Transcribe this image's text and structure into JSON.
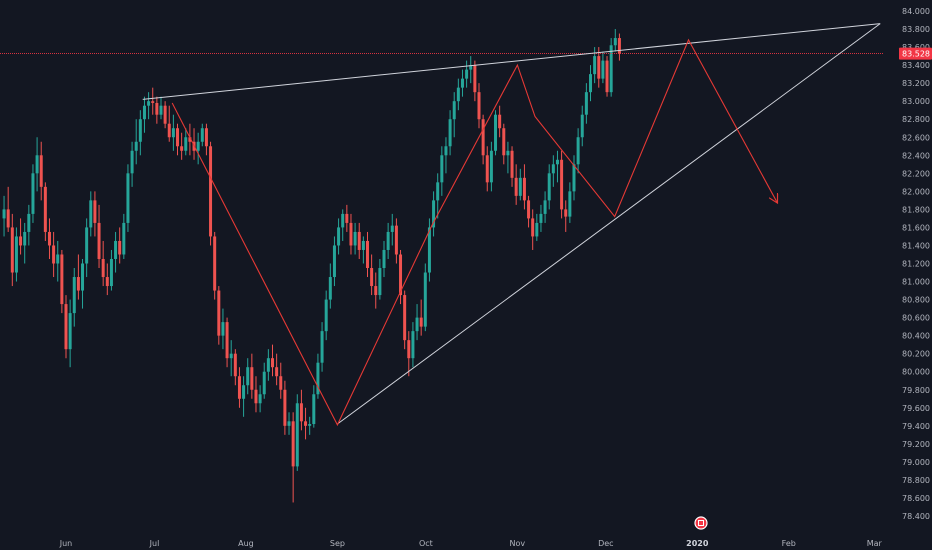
{
  "chart_data": {
    "type": "candlestick",
    "ylim": [
      78.25,
      84.15
    ],
    "y_ticks": [
      "84.000",
      "83.800",
      "83.600",
      "83.400",
      "83.200",
      "83.000",
      "82.800",
      "82.600",
      "82.400",
      "82.200",
      "82.000",
      "81.800",
      "81.600",
      "81.400",
      "81.200",
      "81.000",
      "80.800",
      "80.600",
      "80.400",
      "80.200",
      "80.000",
      "79.800",
      "79.600",
      "79.400",
      "79.200",
      "79.000",
      "78.800",
      "78.600",
      "78.400"
    ],
    "x_ticks": [
      {
        "label": "Jun",
        "day": 0,
        "bold": false
      },
      {
        "label": "Jul",
        "day": 30,
        "bold": false
      },
      {
        "label": "Aug",
        "day": 61,
        "bold": false
      },
      {
        "label": "Sep",
        "day": 92,
        "bold": false
      },
      {
        "label": "Oct",
        "day": 122,
        "bold": false
      },
      {
        "label": "Nov",
        "day": 153,
        "bold": false
      },
      {
        "label": "Dec",
        "day": 183,
        "bold": false
      },
      {
        "label": "2020",
        "day": 214,
        "bold": true
      },
      {
        "label": "Feb",
        "day": 245,
        "bold": false
      },
      {
        "label": "Mar",
        "day": 274,
        "bold": false
      }
    ],
    "current_price": {
      "value": 83.528,
      "label": "83.528",
      "color": "#f23645"
    },
    "colors": {
      "up": "#26a69a",
      "down": "#ef5350",
      "background": "#131722",
      "trendline": "#d1d4dc",
      "pattern": "#e53935"
    },
    "pivot_path": [
      {
        "day": 36,
        "price": 82.98
      },
      {
        "day": 92,
        "price": 79.41
      },
      {
        "day": 124,
        "price": 81.62
      },
      {
        "day": 153,
        "price": 83.4
      },
      {
        "day": 159,
        "price": 82.83
      },
      {
        "day": 186,
        "price": 81.72
      },
      {
        "day": 211,
        "price": 83.68
      },
      {
        "day": 241,
        "price": 81.88
      }
    ],
    "trendlines": [
      {
        "from": {
          "day": 26,
          "price": 83.02
        },
        "to": {
          "day": 276,
          "price": 83.86
        }
      },
      {
        "from": {
          "day": 92,
          "price": 79.42
        },
        "to": {
          "day": 276,
          "price": 83.86
        }
      }
    ],
    "candles": [
      {
        "o": 81.7,
        "h": 81.95,
        "l": 81.5,
        "c": 81.8
      },
      {
        "o": 81.8,
        "h": 82.05,
        "l": 81.55,
        "c": 81.6
      },
      {
        "o": 81.6,
        "h": 81.75,
        "l": 80.95,
        "c": 81.1
      },
      {
        "o": 81.1,
        "h": 81.6,
        "l": 81.0,
        "c": 81.5
      },
      {
        "o": 81.5,
        "h": 81.7,
        "l": 81.3,
        "c": 81.4
      },
      {
        "o": 81.4,
        "h": 81.65,
        "l": 81.2,
        "c": 81.55
      },
      {
        "o": 81.55,
        "h": 81.85,
        "l": 81.4,
        "c": 81.75
      },
      {
        "o": 81.75,
        "h": 82.3,
        "l": 81.65,
        "c": 82.2
      },
      {
        "o": 82.2,
        "h": 82.6,
        "l": 82.0,
        "c": 82.4
      },
      {
        "o": 82.4,
        "h": 82.55,
        "l": 81.9,
        "c": 82.05
      },
      {
        "o": 82.05,
        "h": 82.1,
        "l": 81.45,
        "c": 81.55
      },
      {
        "o": 81.55,
        "h": 81.7,
        "l": 81.25,
        "c": 81.4
      },
      {
        "o": 81.4,
        "h": 81.55,
        "l": 81.05,
        "c": 81.2
      },
      {
        "o": 81.2,
        "h": 81.45,
        "l": 81.0,
        "c": 81.3
      },
      {
        "o": 81.3,
        "h": 81.35,
        "l": 80.65,
        "c": 80.75
      },
      {
        "o": 80.75,
        "h": 80.85,
        "l": 80.15,
        "c": 80.25
      },
      {
        "o": 80.25,
        "h": 80.8,
        "l": 80.05,
        "c": 80.65
      },
      {
        "o": 80.65,
        "h": 81.15,
        "l": 80.5,
        "c": 81.05
      },
      {
        "o": 81.05,
        "h": 81.3,
        "l": 80.8,
        "c": 80.9
      },
      {
        "o": 80.9,
        "h": 81.25,
        "l": 80.7,
        "c": 81.2
      },
      {
        "o": 81.2,
        "h": 81.7,
        "l": 81.05,
        "c": 81.6
      },
      {
        "o": 81.6,
        "h": 82.0,
        "l": 81.5,
        "c": 81.9
      },
      {
        "o": 81.9,
        "h": 82.0,
        "l": 81.5,
        "c": 81.65
      },
      {
        "o": 81.65,
        "h": 81.85,
        "l": 81.15,
        "c": 81.25
      },
      {
        "o": 81.25,
        "h": 81.45,
        "l": 80.95,
        "c": 81.05
      },
      {
        "o": 81.05,
        "h": 81.2,
        "l": 80.85,
        "c": 80.95
      },
      {
        "o": 80.95,
        "h": 81.35,
        "l": 80.9,
        "c": 81.25
      },
      {
        "o": 81.25,
        "h": 81.55,
        "l": 81.1,
        "c": 81.45
      },
      {
        "o": 81.45,
        "h": 81.6,
        "l": 81.2,
        "c": 81.3
      },
      {
        "o": 81.3,
        "h": 81.75,
        "l": 81.25,
        "c": 81.65
      },
      {
        "o": 81.65,
        "h": 82.3,
        "l": 81.55,
        "c": 82.2
      },
      {
        "o": 82.2,
        "h": 82.55,
        "l": 82.05,
        "c": 82.45
      },
      {
        "o": 82.45,
        "h": 82.8,
        "l": 82.3,
        "c": 82.55
      },
      {
        "o": 82.55,
        "h": 82.9,
        "l": 82.4,
        "c": 82.8
      },
      {
        "o": 82.8,
        "h": 83.05,
        "l": 82.65,
        "c": 82.95
      },
      {
        "o": 82.95,
        "h": 83.1,
        "l": 82.8,
        "c": 83.0
      },
      {
        "o": 83.0,
        "h": 83.15,
        "l": 82.85,
        "c": 82.98
      },
      {
        "o": 82.98,
        "h": 83.05,
        "l": 82.75,
        "c": 82.85
      },
      {
        "o": 82.85,
        "h": 83.05,
        "l": 82.8,
        "c": 82.95
      },
      {
        "o": 82.95,
        "h": 83.0,
        "l": 82.7,
        "c": 82.75
      },
      {
        "o": 82.75,
        "h": 82.95,
        "l": 82.55,
        "c": 82.6
      },
      {
        "o": 82.6,
        "h": 82.85,
        "l": 82.45,
        "c": 82.7
      },
      {
        "o": 82.7,
        "h": 82.75,
        "l": 82.4,
        "c": 82.5
      },
      {
        "o": 82.5,
        "h": 82.65,
        "l": 82.35,
        "c": 82.45
      },
      {
        "o": 82.45,
        "h": 82.7,
        "l": 82.4,
        "c": 82.6
      },
      {
        "o": 82.6,
        "h": 82.75,
        "l": 82.4,
        "c": 82.55
      },
      {
        "o": 82.55,
        "h": 82.7,
        "l": 82.35,
        "c": 82.45
      },
      {
        "o": 82.45,
        "h": 82.65,
        "l": 82.3,
        "c": 82.55
      },
      {
        "o": 82.55,
        "h": 82.75,
        "l": 82.5,
        "c": 82.7
      },
      {
        "o": 82.7,
        "h": 82.75,
        "l": 82.4,
        "c": 82.5
      },
      {
        "o": 82.5,
        "h": 82.55,
        "l": 81.4,
        "c": 81.5
      },
      {
        "o": 81.5,
        "h": 81.55,
        "l": 80.8,
        "c": 80.9
      },
      {
        "o": 80.9,
        "h": 80.95,
        "l": 80.3,
        "c": 80.4
      },
      {
        "o": 80.4,
        "h": 80.7,
        "l": 80.25,
        "c": 80.55
      },
      {
        "o": 80.55,
        "h": 80.6,
        "l": 80.05,
        "c": 80.15
      },
      {
        "o": 80.15,
        "h": 80.35,
        "l": 79.95,
        "c": 80.2
      },
      {
        "o": 80.2,
        "h": 80.25,
        "l": 79.85,
        "c": 79.95
      },
      {
        "o": 79.95,
        "h": 80.05,
        "l": 79.6,
        "c": 79.7
      },
      {
        "o": 79.7,
        "h": 79.95,
        "l": 79.5,
        "c": 79.85
      },
      {
        "o": 79.85,
        "h": 80.15,
        "l": 79.75,
        "c": 80.05
      },
      {
        "o": 80.05,
        "h": 80.2,
        "l": 79.7,
        "c": 79.8
      },
      {
        "o": 79.8,
        "h": 79.95,
        "l": 79.55,
        "c": 79.65
      },
      {
        "o": 79.65,
        "h": 79.85,
        "l": 79.55,
        "c": 79.75
      },
      {
        "o": 79.75,
        "h": 80.1,
        "l": 79.7,
        "c": 80.0
      },
      {
        "o": 80.0,
        "h": 80.25,
        "l": 79.9,
        "c": 80.15
      },
      {
        "o": 80.15,
        "h": 80.3,
        "l": 79.95,
        "c": 80.05
      },
      {
        "o": 80.05,
        "h": 80.2,
        "l": 79.85,
        "c": 79.95
      },
      {
        "o": 79.95,
        "h": 80.1,
        "l": 79.7,
        "c": 79.8
      },
      {
        "o": 79.8,
        "h": 79.9,
        "l": 79.3,
        "c": 79.4
      },
      {
        "o": 79.4,
        "h": 79.55,
        "l": 79.3,
        "c": 79.45
      },
      {
        "o": 79.45,
        "h": 79.55,
        "l": 78.55,
        "c": 78.95
      },
      {
        "o": 78.95,
        "h": 79.75,
        "l": 78.9,
        "c": 79.65
      },
      {
        "o": 79.65,
        "h": 79.8,
        "l": 79.35,
        "c": 79.45
      },
      {
        "o": 79.45,
        "h": 79.6,
        "l": 79.25,
        "c": 79.4
      },
      {
        "o": 79.4,
        "h": 79.5,
        "l": 79.3,
        "c": 79.42
      },
      {
        "o": 79.42,
        "h": 79.85,
        "l": 79.38,
        "c": 79.75
      },
      {
        "o": 79.75,
        "h": 80.2,
        "l": 79.7,
        "c": 80.1
      },
      {
        "o": 80.1,
        "h": 80.55,
        "l": 80.0,
        "c": 80.45
      },
      {
        "o": 80.45,
        "h": 80.9,
        "l": 80.35,
        "c": 80.8
      },
      {
        "o": 80.8,
        "h": 81.2,
        "l": 80.7,
        "c": 81.05
      },
      {
        "o": 81.05,
        "h": 81.5,
        "l": 80.95,
        "c": 81.4
      },
      {
        "o": 81.4,
        "h": 81.7,
        "l": 81.3,
        "c": 81.6
      },
      {
        "o": 81.6,
        "h": 81.8,
        "l": 81.45,
        "c": 81.75
      },
      {
        "o": 81.75,
        "h": 81.85,
        "l": 81.55,
        "c": 81.65
      },
      {
        "o": 81.65,
        "h": 81.75,
        "l": 81.3,
        "c": 81.4
      },
      {
        "o": 81.4,
        "h": 81.65,
        "l": 81.3,
        "c": 81.55
      },
      {
        "o": 81.55,
        "h": 81.65,
        "l": 81.25,
        "c": 81.35
      },
      {
        "o": 81.35,
        "h": 81.5,
        "l": 81.2,
        "c": 81.45
      },
      {
        "o": 81.45,
        "h": 81.55,
        "l": 81.05,
        "c": 81.15
      },
      {
        "o": 81.15,
        "h": 81.3,
        "l": 80.85,
        "c": 80.95
      },
      {
        "o": 80.95,
        "h": 81.1,
        "l": 80.7,
        "c": 80.85
      },
      {
        "o": 80.85,
        "h": 81.25,
        "l": 80.8,
        "c": 81.15
      },
      {
        "o": 81.15,
        "h": 81.45,
        "l": 81.05,
        "c": 81.35
      },
      {
        "o": 81.35,
        "h": 81.65,
        "l": 81.25,
        "c": 81.55
      },
      {
        "o": 81.55,
        "h": 81.75,
        "l": 81.4,
        "c": 81.62
      },
      {
        "o": 81.62,
        "h": 81.7,
        "l": 81.2,
        "c": 81.3
      },
      {
        "o": 81.3,
        "h": 81.35,
        "l": 80.75,
        "c": 80.85
      },
      {
        "o": 80.85,
        "h": 80.9,
        "l": 80.25,
        "c": 80.35
      },
      {
        "o": 80.35,
        "h": 80.45,
        "l": 79.95,
        "c": 80.15
      },
      {
        "o": 80.15,
        "h": 80.55,
        "l": 80.05,
        "c": 80.45
      },
      {
        "o": 80.45,
        "h": 80.75,
        "l": 80.35,
        "c": 80.6
      },
      {
        "o": 80.6,
        "h": 80.8,
        "l": 80.4,
        "c": 80.5
      },
      {
        "o": 80.5,
        "h": 81.2,
        "l": 80.45,
        "c": 81.1
      },
      {
        "o": 81.1,
        "h": 81.7,
        "l": 81.0,
        "c": 81.6
      },
      {
        "o": 81.6,
        "h": 82.0,
        "l": 81.5,
        "c": 81.9
      },
      {
        "o": 81.9,
        "h": 82.2,
        "l": 81.7,
        "c": 82.1
      },
      {
        "o": 82.1,
        "h": 82.5,
        "l": 81.95,
        "c": 82.4
      },
      {
        "o": 82.4,
        "h": 82.6,
        "l": 82.2,
        "c": 82.5
      },
      {
        "o": 82.5,
        "h": 82.9,
        "l": 82.4,
        "c": 82.8
      },
      {
        "o": 82.8,
        "h": 83.1,
        "l": 82.6,
        "c": 83.0
      },
      {
        "o": 83.0,
        "h": 83.25,
        "l": 82.9,
        "c": 83.15
      },
      {
        "o": 83.15,
        "h": 83.35,
        "l": 83.05,
        "c": 83.25
      },
      {
        "o": 83.25,
        "h": 83.45,
        "l": 83.15,
        "c": 83.35
      },
      {
        "o": 83.35,
        "h": 83.5,
        "l": 83.2,
        "c": 83.4
      },
      {
        "o": 83.4,
        "h": 83.45,
        "l": 83.0,
        "c": 83.1
      },
      {
        "o": 83.1,
        "h": 83.2,
        "l": 82.7,
        "c": 82.8
      },
      {
        "o": 82.8,
        "h": 82.85,
        "l": 82.3,
        "c": 82.4
      },
      {
        "o": 82.4,
        "h": 82.5,
        "l": 82.0,
        "c": 82.1
      },
      {
        "o": 82.1,
        "h": 82.55,
        "l": 82.0,
        "c": 82.45
      },
      {
        "o": 82.45,
        "h": 82.9,
        "l": 82.4,
        "c": 82.85
      },
      {
        "o": 82.85,
        "h": 82.95,
        "l": 82.6,
        "c": 82.7
      },
      {
        "o": 82.7,
        "h": 82.75,
        "l": 82.3,
        "c": 82.4
      },
      {
        "o": 82.4,
        "h": 82.55,
        "l": 82.2,
        "c": 82.45
      },
      {
        "o": 82.45,
        "h": 82.5,
        "l": 82.05,
        "c": 82.15
      },
      {
        "o": 82.15,
        "h": 82.3,
        "l": 81.85,
        "c": 81.95
      },
      {
        "o": 81.95,
        "h": 82.25,
        "l": 81.9,
        "c": 82.15
      },
      {
        "o": 82.15,
        "h": 82.3,
        "l": 81.8,
        "c": 81.9
      },
      {
        "o": 81.9,
        "h": 81.95,
        "l": 81.6,
        "c": 81.7
      },
      {
        "o": 81.7,
        "h": 81.8,
        "l": 81.35,
        "c": 81.5
      },
      {
        "o": 81.5,
        "h": 81.75,
        "l": 81.45,
        "c": 81.65
      },
      {
        "o": 81.65,
        "h": 81.85,
        "l": 81.55,
        "c": 81.75
      },
      {
        "o": 81.75,
        "h": 82.0,
        "l": 81.65,
        "c": 81.9
      },
      {
        "o": 81.9,
        "h": 82.3,
        "l": 81.8,
        "c": 82.2
      },
      {
        "o": 82.2,
        "h": 82.4,
        "l": 82.05,
        "c": 82.3
      },
      {
        "o": 82.3,
        "h": 82.45,
        "l": 82.1,
        "c": 82.35
      },
      {
        "o": 82.35,
        "h": 82.45,
        "l": 81.7,
        "c": 81.8
      },
      {
        "o": 81.8,
        "h": 81.9,
        "l": 81.55,
        "c": 81.72
      },
      {
        "o": 81.72,
        "h": 82.1,
        "l": 81.65,
        "c": 82.0
      },
      {
        "o": 82.0,
        "h": 82.4,
        "l": 81.9,
        "c": 82.3
      },
      {
        "o": 82.3,
        "h": 82.7,
        "l": 82.2,
        "c": 82.6
      },
      {
        "o": 82.6,
        "h": 82.95,
        "l": 82.5,
        "c": 82.85
      },
      {
        "o": 82.85,
        "h": 83.2,
        "l": 82.75,
        "c": 83.1
      },
      {
        "o": 83.1,
        "h": 83.4,
        "l": 83.0,
        "c": 83.3
      },
      {
        "o": 83.3,
        "h": 83.6,
        "l": 83.2,
        "c": 83.5
      },
      {
        "o": 83.5,
        "h": 83.6,
        "l": 83.15,
        "c": 83.25
      },
      {
        "o": 83.25,
        "h": 83.55,
        "l": 83.2,
        "c": 83.45
      },
      {
        "o": 83.45,
        "h": 83.5,
        "l": 83.05,
        "c": 83.1
      },
      {
        "o": 83.1,
        "h": 83.7,
        "l": 83.05,
        "c": 83.62
      },
      {
        "o": 83.62,
        "h": 83.8,
        "l": 83.55,
        "c": 83.7
      },
      {
        "o": 83.7,
        "h": 83.75,
        "l": 83.45,
        "c": 83.53
      }
    ]
  }
}
